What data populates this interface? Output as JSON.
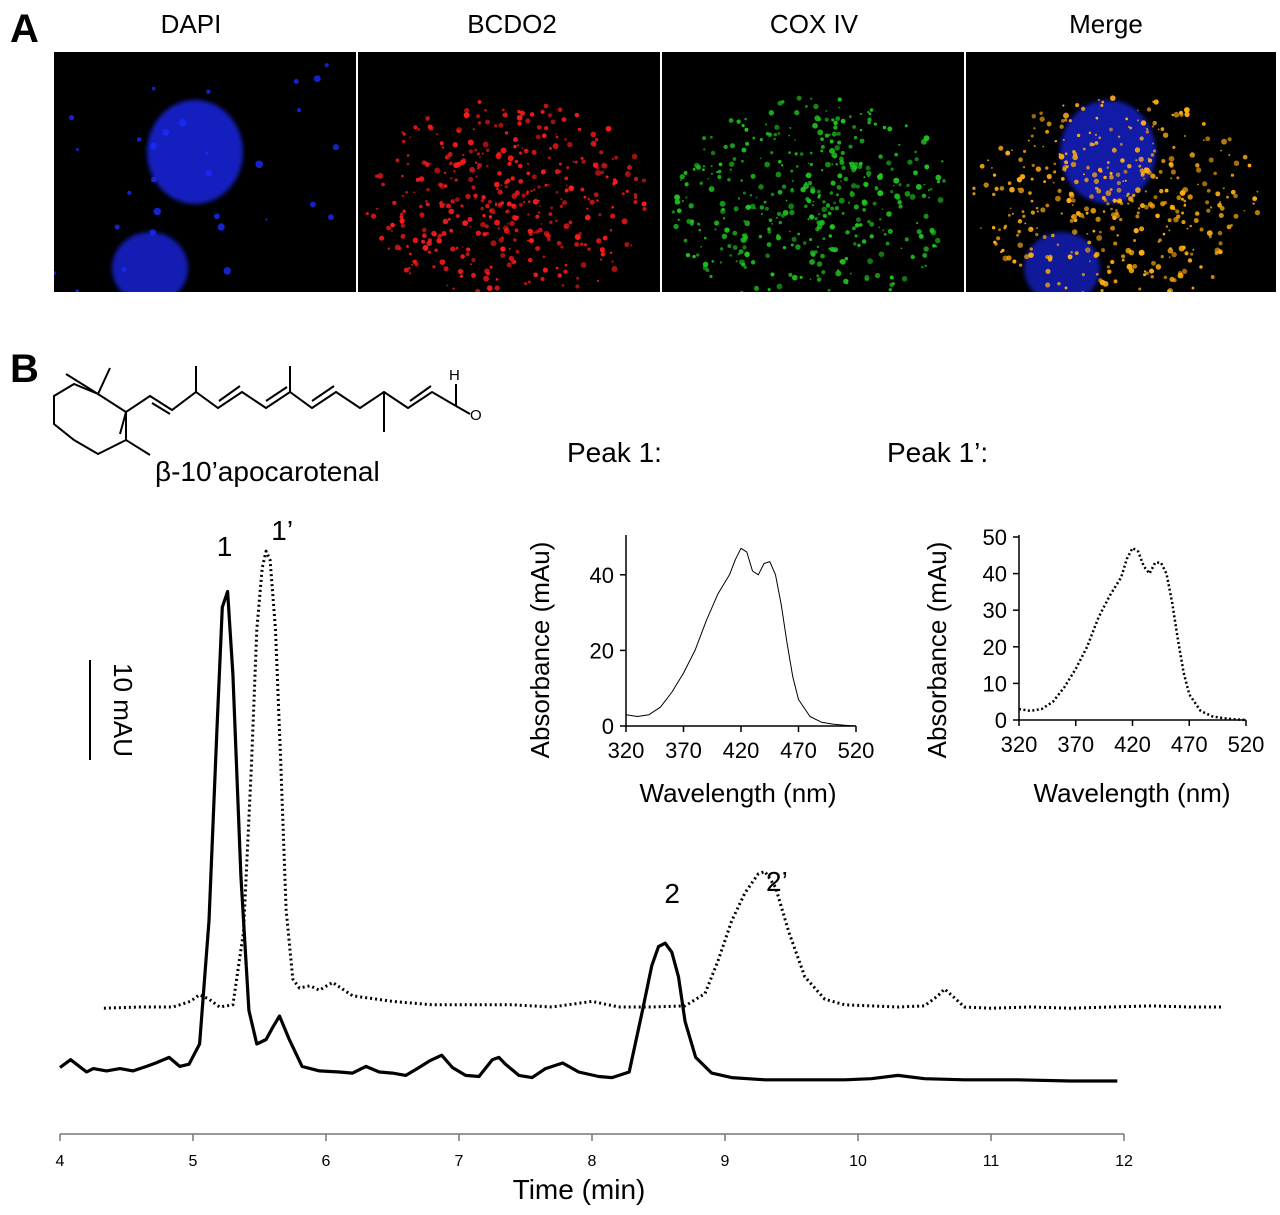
{
  "panel_a": {
    "letter": "A",
    "titles": [
      "DAPI",
      "BCDO2",
      "COX IV",
      "Merge"
    ],
    "colors": [
      "#1a2bff",
      "#ff1a1a",
      "#1fc41f",
      "#ffae10"
    ]
  },
  "panel_b": {
    "letter": "B",
    "compound": "β-10’apocarotenal",
    "atom_h": "H",
    "atom_o": "O",
    "scale_bar": "10 mAU"
  },
  "chart_data": [
    {
      "type": "line",
      "xlabel": "Time (min)",
      "ylabel": "",
      "xlim": [
        4,
        12
      ],
      "xticks": [
        4,
        5,
        6,
        7,
        8,
        9,
        10,
        11,
        12
      ],
      "y_unit": "mAU",
      "scale_bar_mAU": 10,
      "grid": false,
      "series": [
        {
          "style": "solid",
          "x": [
            4.0,
            4.08,
            4.2,
            4.25,
            4.35,
            4.45,
            4.55,
            4.65,
            4.72,
            4.82,
            4.9,
            4.97,
            5.05,
            5.12,
            5.18,
            5.22,
            5.26,
            5.3,
            5.36,
            5.42,
            5.48,
            5.55,
            5.6,
            5.65,
            5.72,
            5.82,
            5.95,
            6.1,
            6.2,
            6.3,
            6.4,
            6.5,
            6.6,
            6.7,
            6.78,
            6.87,
            6.95,
            7.05,
            7.15,
            7.25,
            7.3,
            7.35,
            7.45,
            7.55,
            7.65,
            7.78,
            7.9,
            8.05,
            8.15,
            8.28,
            8.38,
            8.45,
            8.5,
            8.55,
            8.6,
            8.65,
            8.7,
            8.78,
            8.9,
            9.05,
            9.3,
            9.6,
            9.9,
            10.1,
            10.3,
            10.5,
            10.8,
            11.2,
            11.6,
            11.95
          ],
          "y": [
            2.9,
            3.6,
            2.5,
            2.8,
            2.6,
            2.8,
            2.6,
            3.0,
            3.3,
            3.8,
            3.0,
            3.2,
            5.0,
            16.0,
            33.0,
            44.0,
            45.4,
            38.0,
            20.0,
            8.0,
            5.0,
            5.4,
            6.5,
            7.5,
            5.5,
            3.0,
            2.6,
            2.5,
            2.4,
            3.0,
            2.5,
            2.4,
            2.2,
            2.9,
            3.5,
            4.0,
            2.9,
            2.2,
            2.1,
            3.6,
            3.8,
            3.2,
            2.2,
            2.0,
            2.8,
            3.3,
            2.5,
            2.1,
            2.0,
            2.5,
            8.0,
            12.0,
            13.7,
            14.0,
            13.2,
            11.0,
            7.0,
            3.8,
            2.4,
            2.0,
            1.8,
            1.8,
            1.8,
            1.9,
            2.2,
            1.9,
            1.8,
            1.8,
            1.7,
            1.7
          ]
        },
        {
          "style": "dotted",
          "x": [
            4.33,
            4.6,
            4.85,
            4.98,
            5.05,
            5.12,
            5.2,
            5.3,
            5.38,
            5.44,
            5.48,
            5.52,
            5.55,
            5.58,
            5.62,
            5.66,
            5.7,
            5.75,
            5.8,
            5.88,
            5.95,
            6.05,
            6.2,
            6.5,
            6.8,
            7.1,
            7.4,
            7.7,
            8.0,
            8.2,
            8.45,
            8.7,
            8.85,
            8.95,
            9.05,
            9.15,
            9.25,
            9.3,
            9.38,
            9.48,
            9.6,
            9.75,
            9.9,
            10.1,
            10.3,
            10.5,
            10.6,
            10.65,
            10.7,
            10.8,
            11.0,
            11.3,
            11.6,
            11.9,
            12.2,
            12.5,
            12.73
          ],
          "y": [
            8.2,
            8.3,
            8.3,
            8.8,
            9.4,
            9.0,
            8.3,
            8.5,
            15.0,
            30.0,
            42.0,
            47.5,
            49.0,
            48.2,
            42.0,
            30.0,
            17.0,
            10.8,
            10.0,
            10.2,
            9.8,
            10.5,
            9.3,
            8.8,
            8.5,
            8.5,
            8.5,
            8.3,
            8.8,
            8.3,
            8.3,
            8.4,
            9.5,
            12.5,
            16.0,
            18.5,
            20.2,
            20.4,
            19.0,
            15.0,
            11.0,
            9.0,
            8.5,
            8.4,
            8.3,
            8.4,
            9.3,
            9.9,
            9.4,
            8.3,
            8.2,
            8.3,
            8.2,
            8.3,
            8.4,
            8.3,
            8.3
          ]
        }
      ],
      "annotations": [
        {
          "text": "1",
          "x": 5.26
        },
        {
          "text": "1’",
          "x": 5.55
        },
        {
          "text": "2",
          "x": 8.55
        },
        {
          "text": "2’",
          "x": 9.3
        }
      ]
    },
    {
      "type": "line",
      "title": "Peak 1:",
      "xlabel": "Wavelength (nm)",
      "ylabel": "Absorbance (mAu)",
      "xlim": [
        320,
        520
      ],
      "ylim": [
        0,
        50
      ],
      "xticks": [
        320,
        370,
        420,
        470,
        520
      ],
      "yticks": [
        0,
        20,
        40
      ],
      "series": [
        {
          "style": "solid",
          "x": [
            320,
            330,
            340,
            350,
            360,
            370,
            380,
            390,
            400,
            410,
            415,
            420,
            425,
            430,
            435,
            440,
            445,
            450,
            455,
            460,
            465,
            470,
            480,
            490,
            500,
            510,
            520
          ],
          "y": [
            3,
            2.5,
            3,
            5,
            9,
            14,
            20,
            28,
            35,
            40,
            44,
            47,
            46,
            41,
            40,
            43,
            43.5,
            40,
            32,
            22,
            13,
            7,
            2.5,
            1,
            0.5,
            0.2,
            0
          ]
        }
      ]
    },
    {
      "type": "line",
      "title": "Peak 1’:",
      "xlabel": "Wavelength (nm)",
      "ylabel": "Absorbance (mAu)",
      "xlim": [
        320,
        520
      ],
      "ylim": [
        0,
        50
      ],
      "xticks": [
        320,
        370,
        420,
        470,
        520
      ],
      "yticks": [
        0,
        10,
        20,
        30,
        40,
        50
      ],
      "series": [
        {
          "style": "dotted",
          "x": [
            320,
            330,
            340,
            350,
            360,
            370,
            380,
            390,
            400,
            410,
            415,
            420,
            425,
            430,
            435,
            440,
            445,
            450,
            455,
            460,
            465,
            470,
            480,
            490,
            500,
            510,
            520
          ],
          "y": [
            3,
            2.5,
            3,
            5,
            9,
            14,
            20,
            28,
            34,
            39,
            44,
            47,
            46,
            42,
            40,
            43,
            43,
            40,
            32,
            22,
            13,
            7,
            2.5,
            1,
            0.5,
            0.2,
            0
          ]
        }
      ]
    }
  ]
}
